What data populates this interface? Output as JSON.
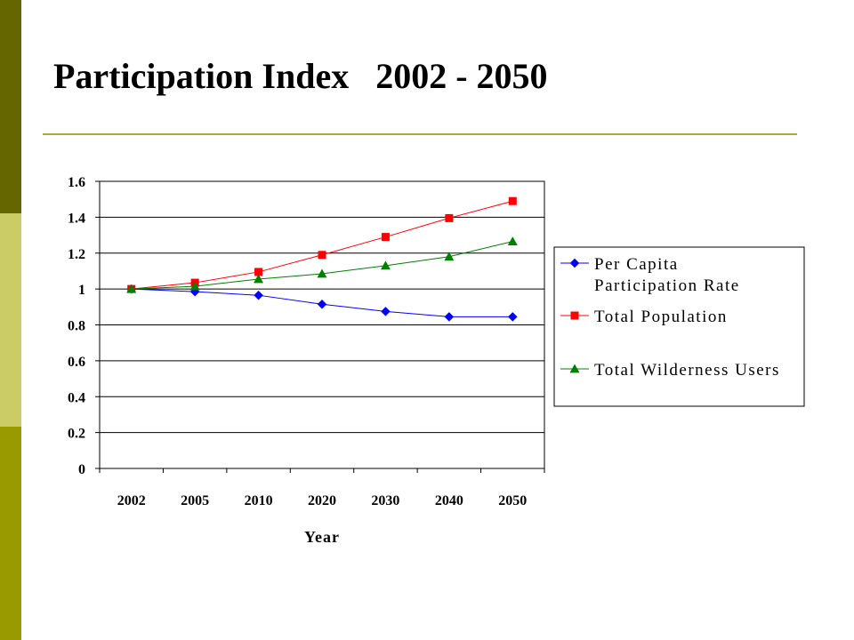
{
  "slide": {
    "title": "Participation Index   2002 - 2050"
  },
  "colors": {
    "stripe_top": "#666600",
    "stripe_mid": "#cccc66",
    "stripe_bottom": "#999900",
    "title_rule": "#b3a835"
  },
  "chart_data": {
    "type": "line",
    "categories": [
      "2002",
      "2005",
      "2010",
      "2020",
      "2030",
      "2040",
      "2050"
    ],
    "series": [
      {
        "name": "Per Capita Participation Rate",
        "name_lines": [
          "Per Capita",
          "Participation Rate"
        ],
        "color": "#0000ff",
        "marker": "diamond",
        "values": [
          1.0,
          0.985,
          0.965,
          0.915,
          0.875,
          0.845,
          0.845
        ]
      },
      {
        "name": "Total Population",
        "name_lines": [
          "Total Population"
        ],
        "color": "#ff0000",
        "marker": "square",
        "values": [
          1.0,
          1.035,
          1.095,
          1.19,
          1.29,
          1.395,
          1.49
        ]
      },
      {
        "name": "Total Wilderness Users",
        "name_lines": [
          "Total Wilderness Users"
        ],
        "color": "#008000",
        "marker": "triangle",
        "values": [
          1.0,
          1.015,
          1.055,
          1.085,
          1.13,
          1.18,
          1.265
        ]
      }
    ],
    "xlabel": "Year",
    "ylabel": "",
    "ylim": [
      0,
      1.6
    ],
    "yticks": [
      "0",
      "0.2",
      "0.4",
      "0.6",
      "0.8",
      "1",
      "1.2",
      "1.4",
      "1.6"
    ],
    "grid": true,
    "legend_position": "right"
  }
}
